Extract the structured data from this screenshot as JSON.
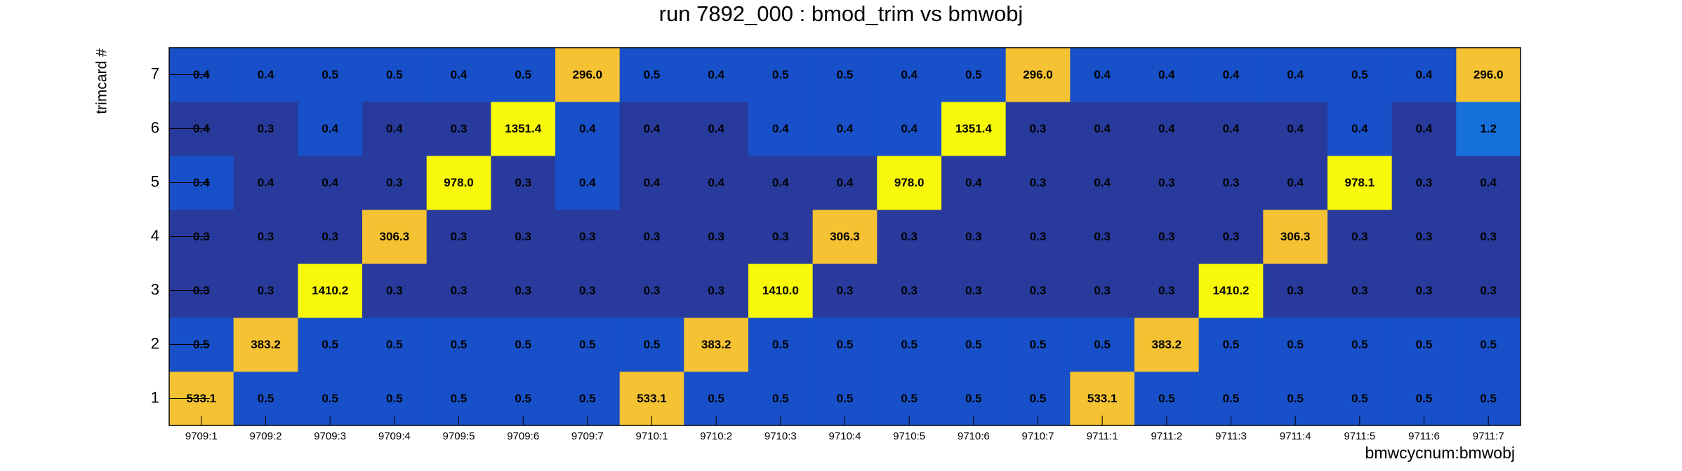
{
  "chart_data": {
    "type": "heatmap",
    "title": "run 7892_000 : bmod_trim vs bmwobj",
    "x_label": "bmwcycnum:bmwobj",
    "y_label": "trimcard #",
    "x_categories": [
      "9709:1",
      "9709:2",
      "9709:3",
      "9709:4",
      "9709:5",
      "9709:6",
      "9709:7",
      "9710:1",
      "9710:2",
      "9710:3",
      "9710:4",
      "9710:5",
      "9710:6",
      "9710:7",
      "9711:1",
      "9711:2",
      "9711:3",
      "9711:4",
      "9711:5",
      "9711:6",
      "9711:7"
    ],
    "y_categories": [
      1,
      2,
      3,
      4,
      5,
      6,
      7
    ],
    "values": [
      [
        533.1,
        0.5,
        0.5,
        0.5,
        0.5,
        0.5,
        0.5,
        533.1,
        0.5,
        0.5,
        0.5,
        0.5,
        0.5,
        0.5,
        533.1,
        0.5,
        0.5,
        0.5,
        0.5,
        0.5,
        0.5
      ],
      [
        0.5,
        383.2,
        0.5,
        0.5,
        0.5,
        0.5,
        0.5,
        0.5,
        383.2,
        0.5,
        0.5,
        0.5,
        0.5,
        0.5,
        0.5,
        383.2,
        0.5,
        0.5,
        0.5,
        0.5,
        0.5
      ],
      [
        0.3,
        0.3,
        1410.2,
        0.3,
        0.3,
        0.3,
        0.3,
        0.3,
        0.3,
        1410.0,
        0.3,
        0.3,
        0.3,
        0.3,
        0.3,
        0.3,
        1410.2,
        0.3,
        0.3,
        0.3,
        0.3
      ],
      [
        0.3,
        0.3,
        0.3,
        306.3,
        0.3,
        0.3,
        0.3,
        0.3,
        0.3,
        0.3,
        306.3,
        0.3,
        0.3,
        0.3,
        0.3,
        0.3,
        0.3,
        306.3,
        0.3,
        0.3,
        0.3
      ],
      [
        0.4,
        0.4,
        0.4,
        0.3,
        978.0,
        0.3,
        0.4,
        0.4,
        0.4,
        0.4,
        0.4,
        978.0,
        0.4,
        0.3,
        0.4,
        0.3,
        0.3,
        0.4,
        978.1,
        0.3,
        0.4
      ],
      [
        0.4,
        0.3,
        0.4,
        0.4,
        0.3,
        1351.4,
        0.4,
        0.4,
        0.4,
        0.4,
        0.4,
        0.4,
        1351.4,
        0.3,
        0.4,
        0.4,
        0.4,
        0.4,
        0.4,
        0.4,
        1.2
      ],
      [
        0.4,
        0.4,
        0.5,
        0.5,
        0.4,
        0.5,
        296.0,
        0.5,
        0.4,
        0.5,
        0.5,
        0.4,
        0.5,
        296.0,
        0.4,
        0.4,
        0.4,
        0.4,
        0.5,
        0.4,
        296.0
      ]
    ],
    "value_labels": [
      [
        "533.1",
        "0.5",
        "0.5",
        "0.5",
        "0.5",
        "0.5",
        "0.5",
        "533.1",
        "0.5",
        "0.5",
        "0.5",
        "0.5",
        "0.5",
        "0.5",
        "533.1",
        "0.5",
        "0.5",
        "0.5",
        "0.5",
        "0.5",
        "0.5"
      ],
      [
        "0.5",
        "383.2",
        "0.5",
        "0.5",
        "0.5",
        "0.5",
        "0.5",
        "0.5",
        "383.2",
        "0.5",
        "0.5",
        "0.5",
        "0.5",
        "0.5",
        "0.5",
        "383.2",
        "0.5",
        "0.5",
        "0.5",
        "0.5",
        "0.5"
      ],
      [
        "0.3",
        "0.3",
        "1410.2",
        "0.3",
        "0.3",
        "0.3",
        "0.3",
        "0.3",
        "0.3",
        "1410.0",
        "0.3",
        "0.3",
        "0.3",
        "0.3",
        "0.3",
        "0.3",
        "1410.2",
        "0.3",
        "0.3",
        "0.3",
        "0.3"
      ],
      [
        "0.3",
        "0.3",
        "0.3",
        "306.3",
        "0.3",
        "0.3",
        "0.3",
        "0.3",
        "0.3",
        "0.3",
        "306.3",
        "0.3",
        "0.3",
        "0.3",
        "0.3",
        "0.3",
        "0.3",
        "306.3",
        "0.3",
        "0.3",
        "0.3"
      ],
      [
        "0.4",
        "0.4",
        "0.4",
        "0.3",
        "978.0",
        "0.3",
        "0.4",
        "0.4",
        "0.4",
        "0.4",
        "0.4",
        "978.0",
        "0.4",
        "0.3",
        "0.4",
        "0.3",
        "0.3",
        "0.4",
        "978.1",
        "0.3",
        "0.4"
      ],
      [
        "0.4",
        "0.3",
        "0.4",
        "0.4",
        "0.3",
        "1351.4",
        "0.4",
        "0.4",
        "0.4",
        "0.4",
        "0.4",
        "0.4",
        "1351.4",
        "0.3",
        "0.4",
        "0.4",
        "0.4",
        "0.4",
        "0.4",
        "0.4",
        "1.2"
      ],
      [
        "0.4",
        "0.4",
        "0.5",
        "0.5",
        "0.4",
        "0.5",
        "296.0",
        "0.5",
        "0.4",
        "0.5",
        "0.5",
        "0.4",
        "0.5",
        "296.0",
        "0.4",
        "0.4",
        "0.4",
        "0.4",
        "0.5",
        "0.4",
        "296.0"
      ]
    ],
    "colors": [
      [
        "#f4c232",
        "#1750c8",
        "#1750c8",
        "#1750c8",
        "#1750c8",
        "#1750c8",
        "#1750c8",
        "#f4c232",
        "#1750c8",
        "#1750c8",
        "#1750c8",
        "#1750c8",
        "#1750c8",
        "#1750c8",
        "#f4c232",
        "#1750c8",
        "#1750c8",
        "#1750c8",
        "#1750c8",
        "#1750c8",
        "#1750c8"
      ],
      [
        "#1750c8",
        "#f4c232",
        "#1750c8",
        "#1750c8",
        "#1750c8",
        "#1750c8",
        "#1750c8",
        "#1750c8",
        "#f4c232",
        "#1750c8",
        "#1750c8",
        "#1750c8",
        "#1750c8",
        "#1750c8",
        "#1750c8",
        "#f4c232",
        "#1750c8",
        "#1750c8",
        "#1750c8",
        "#1750c8",
        "#1750c8"
      ],
      [
        "#283b9c",
        "#283b9c",
        "#f8f80a",
        "#283b9c",
        "#283b9c",
        "#283b9c",
        "#283b9c",
        "#283b9c",
        "#283b9c",
        "#f8f80a",
        "#283b9c",
        "#283b9c",
        "#283b9c",
        "#283b9c",
        "#283b9c",
        "#283b9c",
        "#f8f80a",
        "#283b9c",
        "#283b9c",
        "#283b9c",
        "#283b9c"
      ],
      [
        "#283b9c",
        "#283b9c",
        "#283b9c",
        "#f4c232",
        "#283b9c",
        "#283b9c",
        "#283b9c",
        "#283b9c",
        "#283b9c",
        "#283b9c",
        "#f4c232",
        "#283b9c",
        "#283b9c",
        "#283b9c",
        "#283b9c",
        "#283b9c",
        "#283b9c",
        "#f4c232",
        "#283b9c",
        "#283b9c",
        "#283b9c"
      ],
      [
        "#1750c8",
        "#283b9c",
        "#283b9c",
        "#283b9c",
        "#f8f80a",
        "#283b9c",
        "#1750c8",
        "#283b9c",
        "#283b9c",
        "#283b9c",
        "#283b9c",
        "#f8f80a",
        "#283b9c",
        "#283b9c",
        "#283b9c",
        "#283b9c",
        "#283b9c",
        "#283b9c",
        "#f8f80a",
        "#283b9c",
        "#283b9c"
      ],
      [
        "#283b9c",
        "#283b9c",
        "#1750c8",
        "#283b9c",
        "#283b9c",
        "#f8f80a",
        "#1750c8",
        "#283b9c",
        "#283b9c",
        "#1750c8",
        "#1750c8",
        "#1750c8",
        "#f8f80a",
        "#283b9c",
        "#283b9c",
        "#283b9c",
        "#283b9c",
        "#283b9c",
        "#1750c8",
        "#283b9c",
        "#1570dc"
      ],
      [
        "#1750c8",
        "#1750c8",
        "#1750c8",
        "#1750c8",
        "#1750c8",
        "#1750c8",
        "#f4c232",
        "#1750c8",
        "#1750c8",
        "#1750c8",
        "#1750c8",
        "#1750c8",
        "#1750c8",
        "#f4c232",
        "#1750c8",
        "#1750c8",
        "#1750c8",
        "#1750c8",
        "#1750c8",
        "#1750c8",
        "#f4c232"
      ]
    ]
  }
}
